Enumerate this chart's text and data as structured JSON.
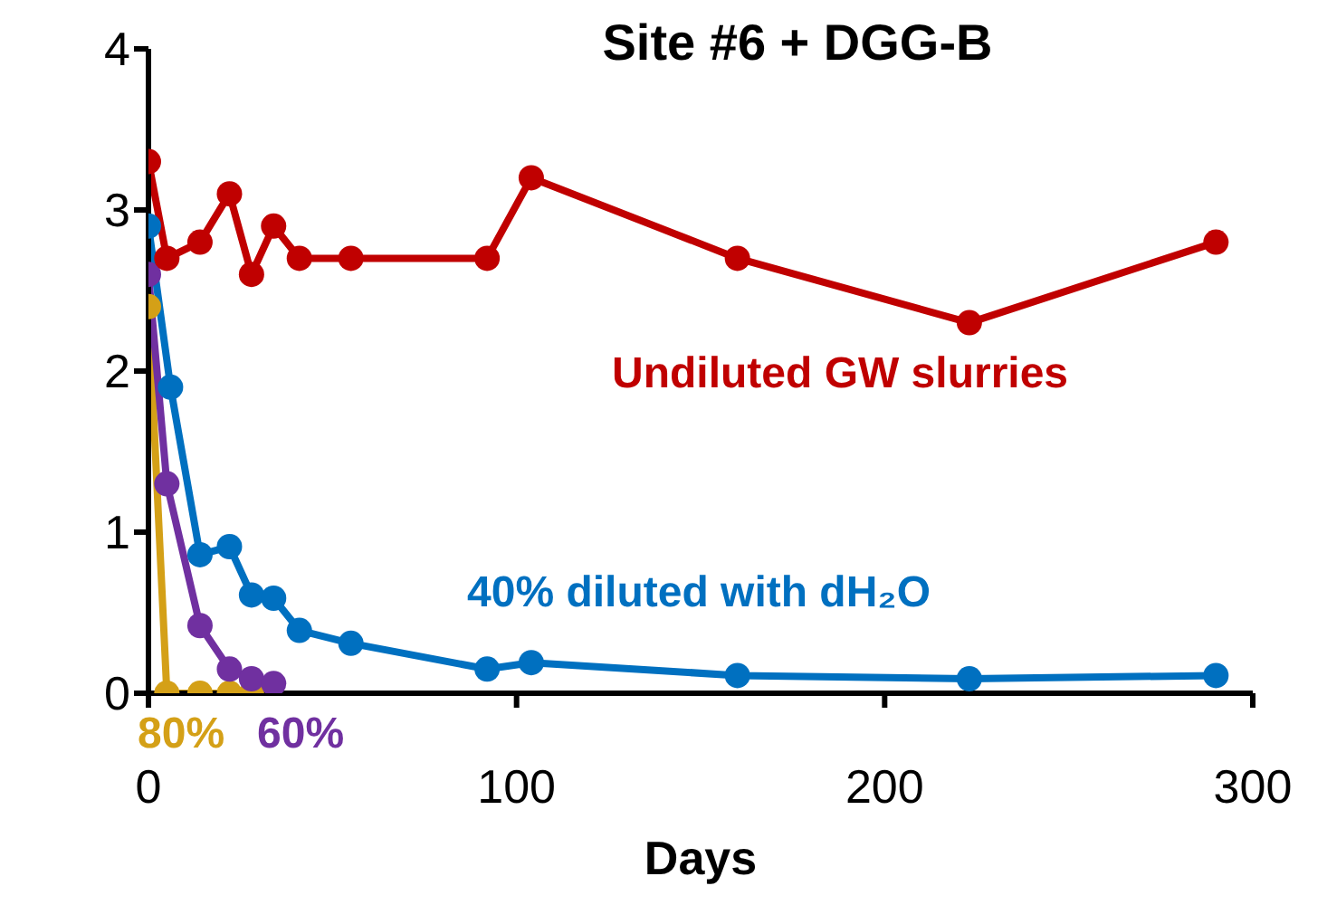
{
  "chart_data": {
    "type": "line",
    "title": "Site #6 + DGG-B",
    "xlabel": "Days",
    "xlim": [
      0,
      300
    ],
    "xticks": [
      0,
      100,
      200,
      300
    ],
    "ylim": [
      0,
      4
    ],
    "yticks": [
      0,
      1,
      2,
      3,
      4
    ],
    "grid": false,
    "marker": "circle",
    "line_style": "solid",
    "series": [
      {
        "name": "80%",
        "color": "#d4a017",
        "x": [
          0,
          5,
          14,
          22,
          28
        ],
        "values": [
          2.4,
          0,
          0,
          0,
          0
        ]
      },
      {
        "name": "60%",
        "color": "#7030a0",
        "x": [
          0,
          5,
          14,
          22,
          28,
          34
        ],
        "values": [
          2.6,
          1.3,
          0.42,
          0.15,
          0.09,
          0.06
        ]
      },
      {
        "name": "40% diluted with dH₂O",
        "color": "#0070c0",
        "x": [
          0,
          6,
          14,
          22,
          28,
          34,
          41,
          55,
          92,
          104,
          160,
          223,
          290
        ],
        "values": [
          2.9,
          1.9,
          0.86,
          0.91,
          0.61,
          0.59,
          0.39,
          0.31,
          0.15,
          0.19,
          0.11,
          0.09,
          0.11
        ]
      },
      {
        "name": "Undiluted GW slurries",
        "color": "#c00000",
        "x": [
          0,
          5,
          14,
          22,
          28,
          34,
          41,
          55,
          92,
          104,
          160,
          223,
          290
        ],
        "values": [
          3.3,
          2.7,
          2.8,
          3.1,
          2.6,
          2.9,
          2.7,
          2.7,
          2.7,
          3.2,
          2.7,
          2.3,
          2.8
        ]
      }
    ]
  }
}
